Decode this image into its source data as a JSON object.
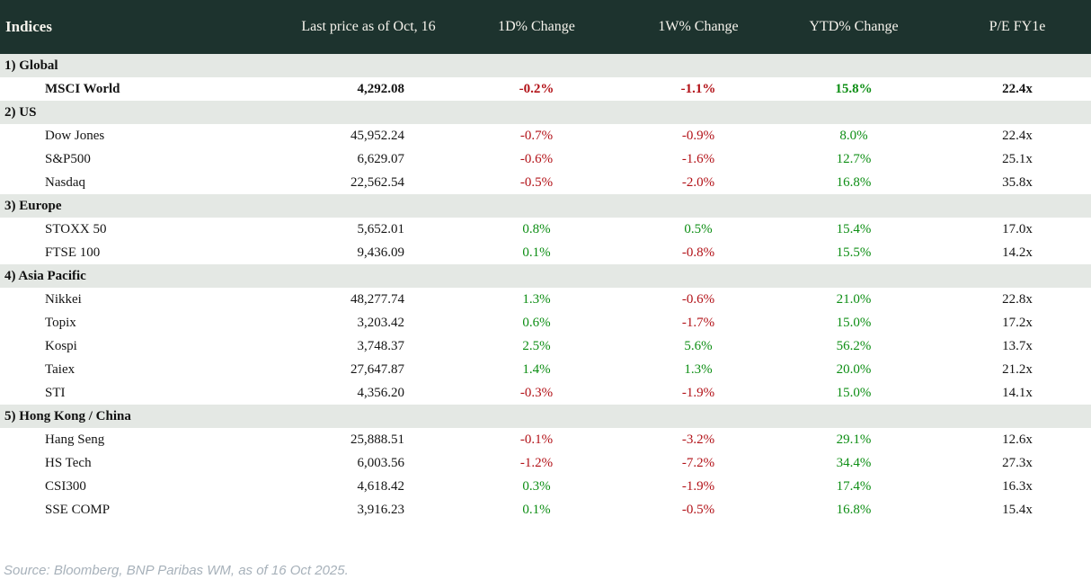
{
  "colors": {
    "header_bg": "#1d332e",
    "header_text": "#f6f3ec",
    "section_bg": "#e4e8e4",
    "positive": "#0d8e14",
    "negative": "#b21117",
    "source_text": "#a7b1ba"
  },
  "table": {
    "columns": [
      "Indices",
      "Last price as of Oct, 16",
      "1D% Change",
      "1W% Change",
      "YTD% Change",
      "P/E FY1e"
    ],
    "sections": [
      {
        "label": "1) Global",
        "rows": [
          {
            "name": "MSCI World",
            "price": "4,292.08",
            "d1": "-0.2%",
            "w1": "-1.1%",
            "ytd": "15.8%",
            "pe": "22.4x",
            "bold": true
          }
        ]
      },
      {
        "label": "2) US",
        "rows": [
          {
            "name": "Dow Jones",
            "price": "45,952.24",
            "d1": "-0.7%",
            "w1": "-0.9%",
            "ytd": "8.0%",
            "pe": "22.4x"
          },
          {
            "name": "S&P500",
            "price": "6,629.07",
            "d1": "-0.6%",
            "w1": "-1.6%",
            "ytd": "12.7%",
            "pe": "25.1x"
          },
          {
            "name": "Nasdaq",
            "price": "22,562.54",
            "d1": "-0.5%",
            "w1": "-2.0%",
            "ytd": "16.8%",
            "pe": "35.8x"
          }
        ]
      },
      {
        "label": "3) Europe",
        "rows": [
          {
            "name": "STOXX 50",
            "price": "5,652.01",
            "d1": "0.8%",
            "w1": "0.5%",
            "ytd": "15.4%",
            "pe": "17.0x"
          },
          {
            "name": "FTSE 100",
            "price": "9,436.09",
            "d1": "0.1%",
            "w1": "-0.8%",
            "ytd": "15.5%",
            "pe": "14.2x"
          }
        ]
      },
      {
        "label": "4) Asia Pacific",
        "rows": [
          {
            "name": "Nikkei",
            "price": "48,277.74",
            "d1": "1.3%",
            "w1": "-0.6%",
            "ytd": "21.0%",
            "pe": "22.8x"
          },
          {
            "name": "Topix",
            "price": "3,203.42",
            "d1": "0.6%",
            "w1": "-1.7%",
            "ytd": "15.0%",
            "pe": "17.2x"
          },
          {
            "name": "Kospi",
            "price": "3,748.37",
            "d1": "2.5%",
            "w1": "5.6%",
            "ytd": "56.2%",
            "pe": "13.7x"
          },
          {
            "name": "Taiex",
            "price": "27,647.87",
            "d1": "1.4%",
            "w1": "1.3%",
            "ytd": "20.0%",
            "pe": "21.2x"
          },
          {
            "name": "STI",
            "price": "4,356.20",
            "d1": "-0.3%",
            "w1": "-1.9%",
            "ytd": "15.0%",
            "pe": "14.1x"
          }
        ]
      },
      {
        "label": "5) Hong Kong / China",
        "rows": [
          {
            "name": "Hang Seng",
            "price": "25,888.51",
            "d1": "-0.1%",
            "w1": "-3.2%",
            "ytd": "29.1%",
            "pe": "12.6x"
          },
          {
            "name": "HS Tech",
            "price": "6,003.56",
            "d1": "-1.2%",
            "w1": "-7.2%",
            "ytd": "34.4%",
            "pe": "27.3x"
          },
          {
            "name": "CSI300",
            "price": "4,618.42",
            "d1": "0.3%",
            "w1": "-1.9%",
            "ytd": "17.4%",
            "pe": "16.3x"
          },
          {
            "name": "SSE COMP",
            "price": "3,916.23",
            "d1": "0.1%",
            "w1": "-0.5%",
            "ytd": "16.8%",
            "pe": "15.4x"
          }
        ]
      }
    ]
  },
  "footer": {
    "source": "Source: Bloomberg, BNP Paribas WM, as of 16 Oct 2025."
  }
}
